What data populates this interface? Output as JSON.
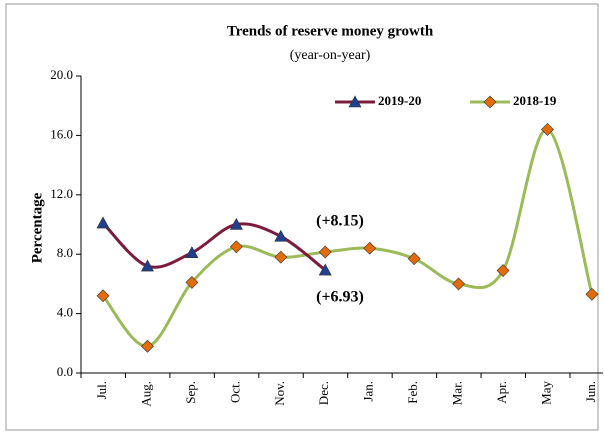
{
  "chart_data": {
    "type": "line",
    "title": "Trends of reserve money growth",
    "subtitle": "(year-on-year)",
    "y_label": "Percentage",
    "categories": [
      "Jul.",
      "Aug.",
      "Sep.",
      "Oct.",
      "Nov.",
      "Dec.",
      "Jan.",
      "Feb.",
      "Mar.",
      "Apr.",
      "May",
      "Jun."
    ],
    "series": [
      {
        "name": "2019-20",
        "color": "#7b1c3e",
        "marker": "triangle",
        "marker_color": "#1f3f8f",
        "values": [
          10.1,
          7.2,
          8.1,
          10.0,
          9.2,
          6.93,
          null,
          null,
          null,
          null,
          null,
          null
        ]
      },
      {
        "name": "2018-19",
        "color": "#9bbb59",
        "marker": "diamond",
        "marker_color": "#e36c0a",
        "values": [
          5.2,
          1.8,
          6.1,
          8.5,
          7.8,
          8.15,
          8.4,
          7.7,
          6.0,
          6.9,
          16.4,
          5.3
        ]
      }
    ],
    "annotations": [
      "(+8.15)",
      "(+6.93)"
    ],
    "ylim": [
      0,
      20
    ],
    "yticks": [
      {
        "value": 0,
        "label": "0.0"
      },
      {
        "value": 4,
        "label": "4.0"
      },
      {
        "value": 8,
        "label": "8.0"
      },
      {
        "value": 12,
        "label": "12.0"
      },
      {
        "value": 16,
        "label": "16.0"
      },
      {
        "value": 20,
        "label": "20.0"
      }
    ],
    "grid": false,
    "legend": "top-right",
    "smooth": true
  }
}
